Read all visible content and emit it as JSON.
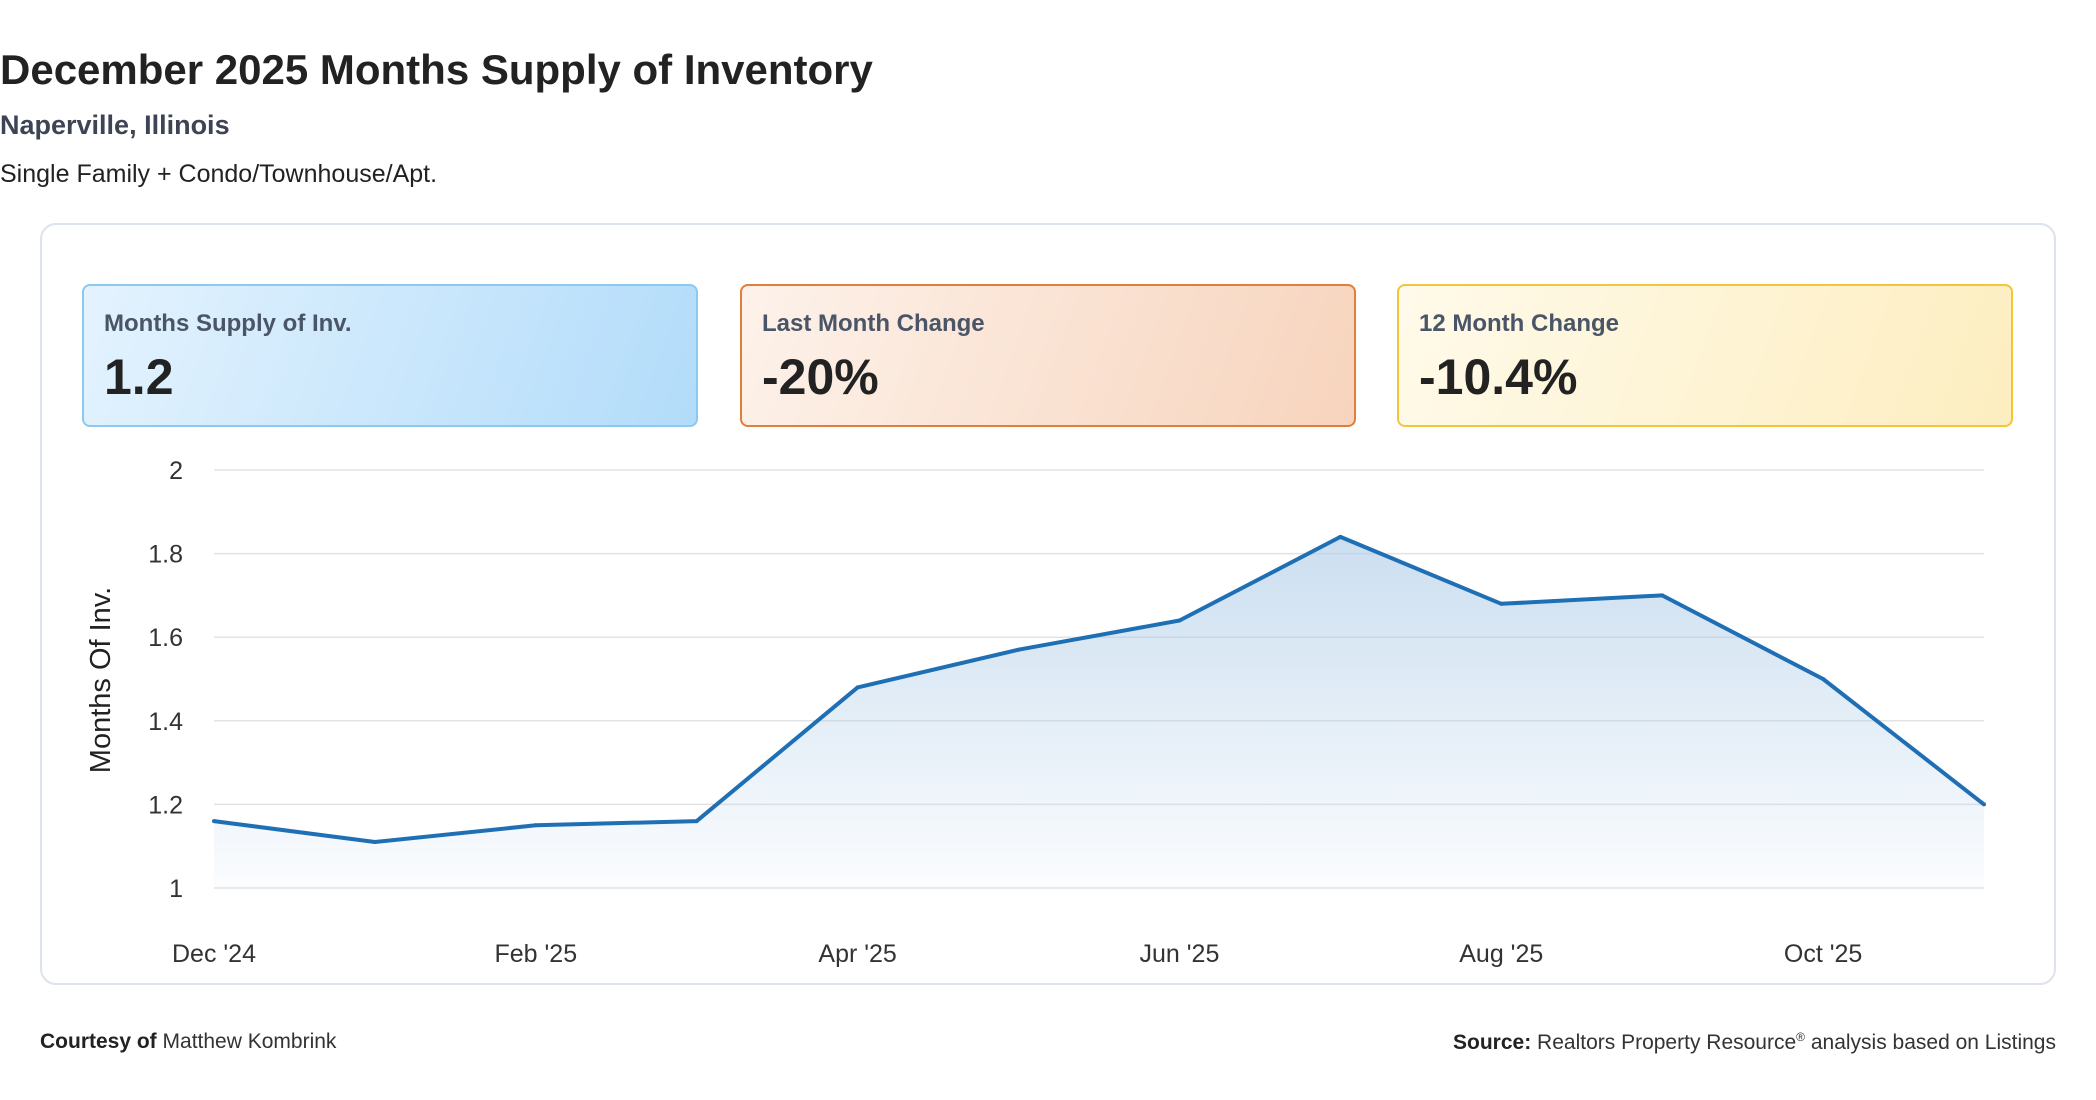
{
  "header": {
    "title": "December 2025 Months Supply of Inventory",
    "subtitle": "Naperville, Illinois",
    "description": "Single Family + Condo/Townhouse/Apt."
  },
  "cards": [
    {
      "label": "Months Supply of Inv.",
      "value": "1.2",
      "color": "#8cc8f0"
    },
    {
      "label": "Last Month Change",
      "value": "-20%",
      "color": "#e37d3a"
    },
    {
      "label": "12 Month Change",
      "value": "-10.4%",
      "color": "#f2c53a"
    }
  ],
  "chart_data": {
    "type": "area",
    "ylabel": "Months Of Inv.",
    "ylim": [
      1,
      2
    ],
    "yticks": [
      "1",
      "1.2",
      "1.4",
      "1.6",
      "1.8",
      "2"
    ],
    "x_tick_labels": [
      "Dec '24",
      "Feb '25",
      "Apr '25",
      "Jun '25",
      "Aug '25",
      "Oct '25"
    ],
    "x": [
      "Dec '24",
      "Jan '25",
      "Feb '25",
      "Mar '25",
      "Apr '25",
      "May '25",
      "Jun '25",
      "Jul '25",
      "Aug '25",
      "Sep '25",
      "Oct '25",
      "Nov '25"
    ],
    "series": [
      {
        "values": [
          1.16,
          1.11,
          1.15,
          1.16,
          1.48,
          1.57,
          1.64,
          1.84,
          1.68,
          1.7,
          1.5,
          1.2
        ]
      }
    ],
    "grid": true,
    "line_color": "#1f6fb5",
    "fill_color": "#a9c9e6"
  },
  "footer": {
    "courtesy_label": "Courtesy of",
    "courtesy_name": "Matthew Kombrink",
    "source_label": "Source:",
    "source_text_1": "Realtors Property Resource",
    "source_reg": "®",
    "source_text_2": " analysis based on Listings"
  }
}
